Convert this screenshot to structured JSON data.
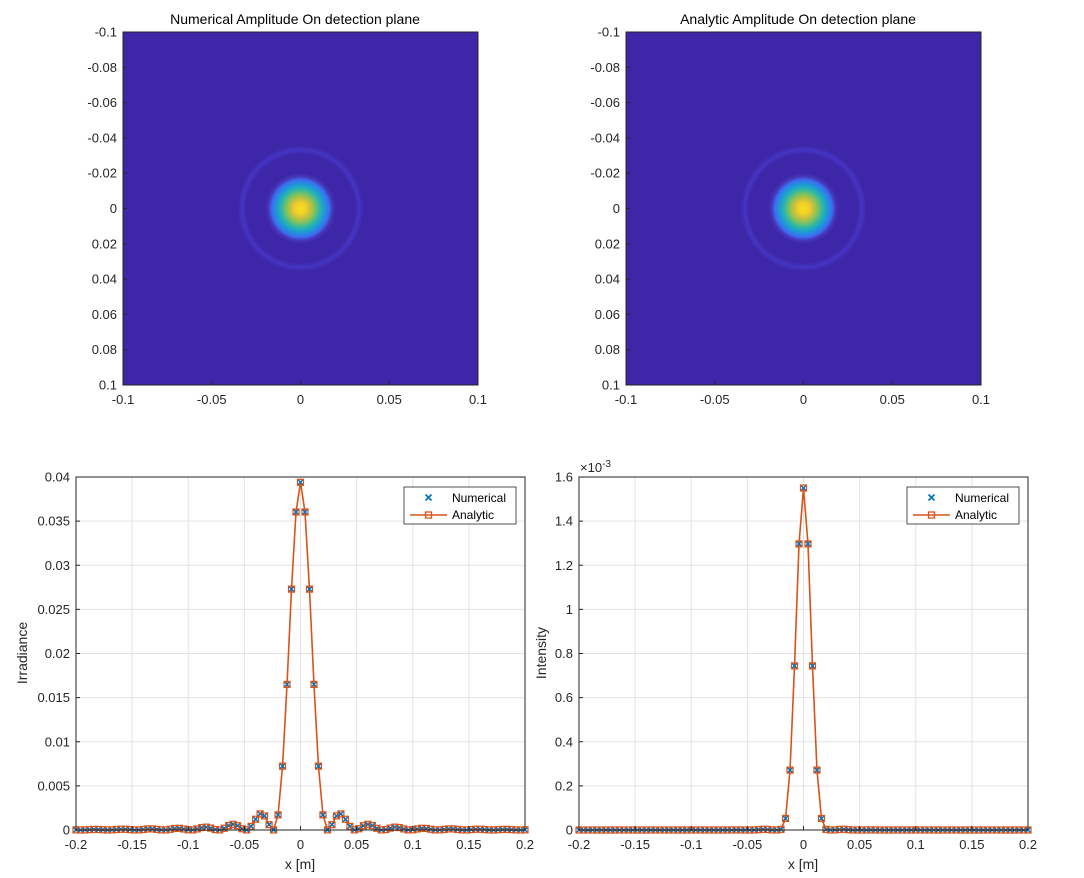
{
  "chart_data": [
    {
      "type": "heatmap",
      "title": "Numerical Amplitude On detection plane",
      "xlim": [
        -0.1,
        0.1
      ],
      "ylim": [
        -0.1,
        0.1
      ],
      "y_direction": "reversed",
      "xticks": [
        "-0.1",
        "-0.05",
        "0",
        "0.05",
        "0.1"
      ],
      "yticks": [
        "-0.1",
        "-0.08",
        "-0.06",
        "-0.04",
        "-0.02",
        "0",
        "0.02",
        "0.04",
        "0.06",
        "0.08",
        "0.1"
      ],
      "colormap": "parula",
      "peak_center": [
        0,
        0
      ],
      "core_radius": 0.018,
      "ring_radius": 0.033
    },
    {
      "type": "heatmap",
      "title": "Analytic Amplitude On detection plane",
      "xlim": [
        -0.1,
        0.1
      ],
      "ylim": [
        -0.1,
        0.1
      ],
      "y_direction": "reversed",
      "xticks": [
        "-0.1",
        "-0.05",
        "0",
        "0.05",
        "0.1"
      ],
      "yticks": [
        "-0.1",
        "-0.08",
        "-0.06",
        "-0.04",
        "-0.02",
        "0",
        "0.02",
        "0.04",
        "0.06",
        "0.08",
        "0.1"
      ],
      "colormap": "parula",
      "peak_center": [
        0,
        0
      ],
      "core_radius": 0.018,
      "ring_radius": 0.033
    },
    {
      "type": "line",
      "xlabel": "x [m]",
      "ylabel": "Irradiance",
      "xlim": [
        -0.2,
        0.2
      ],
      "ylim": [
        0,
        0.04
      ],
      "xticks": [
        "-0.2",
        "-0.15",
        "-0.1",
        "-0.05",
        "0",
        "0.05",
        "0.1",
        "0.15",
        "0.2"
      ],
      "yticks": [
        "0",
        "0.005",
        "0.01",
        "0.015",
        "0.02",
        "0.025",
        "0.03",
        "0.035",
        "0.04"
      ],
      "grid": true,
      "legend_position": "top-right",
      "profile": "airy",
      "peak": 0.0394,
      "first_zero": 0.0244,
      "x_step": 0.004,
      "series": [
        {
          "name": "Numerical",
          "marker": "x",
          "color": "#0072BD"
        },
        {
          "name": "Analytic",
          "marker": "square-line",
          "color": "#D95319"
        }
      ]
    },
    {
      "type": "line",
      "xlabel": "x [m]",
      "ylabel": "Intensity",
      "xlim": [
        -0.2,
        0.2
      ],
      "ylim": [
        0,
        0.0016
      ],
      "exponent_label": "×10",
      "exponent_power": "-3",
      "xticks": [
        "-0.2",
        "-0.15",
        "-0.1",
        "-0.05",
        "0",
        "0.05",
        "0.1",
        "0.15",
        "0.2"
      ],
      "yticks": [
        "0",
        "0.2",
        "0.4",
        "0.6",
        "0.8",
        "1",
        "1.2",
        "1.4",
        "1.6"
      ],
      "grid": true,
      "legend_position": "top-right",
      "profile": "airy-squared",
      "peak": 0.00155,
      "first_zero": 0.0244,
      "x_step": 0.004,
      "series": [
        {
          "name": "Numerical",
          "marker": "x",
          "color": "#0072BD"
        },
        {
          "name": "Analytic",
          "marker": "square-line",
          "color": "#D95319"
        }
      ]
    }
  ]
}
